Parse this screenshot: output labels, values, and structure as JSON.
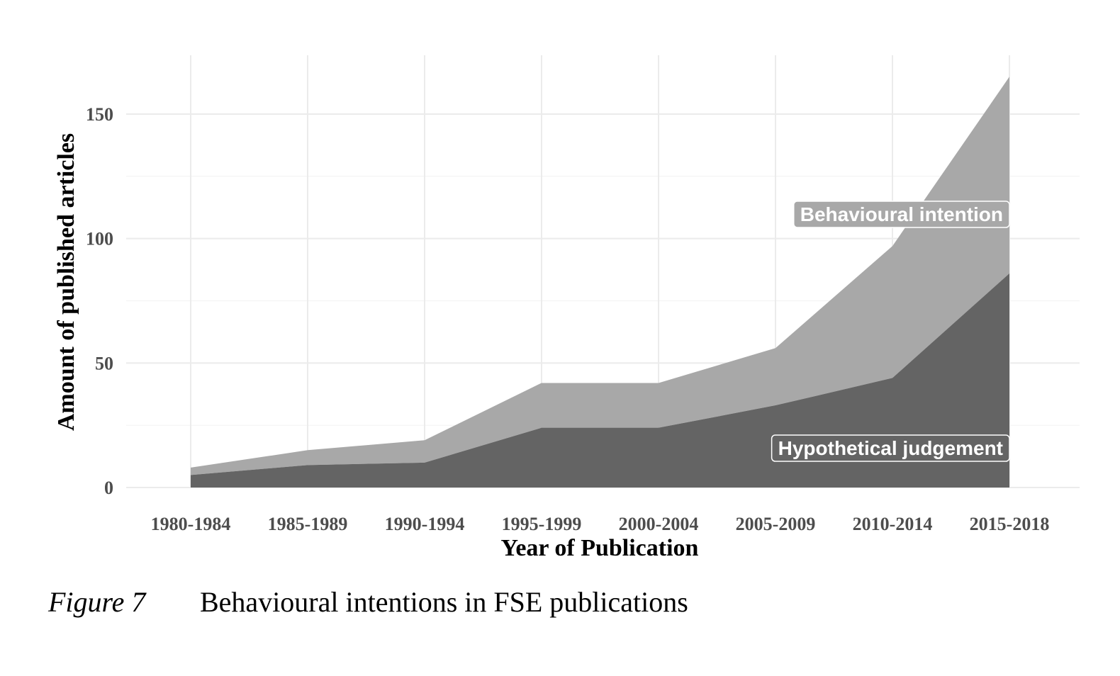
{
  "caption": {
    "figure_label": "Figure 7",
    "text": "Behavioural intentions in FSE publications"
  },
  "colors": {
    "hypothetical": "#646464",
    "behavioural": "#a8a8a8",
    "grid": "#ebebeb"
  },
  "chart_data": {
    "type": "area",
    "stacked": true,
    "xlabel": "Year of Publication",
    "ylabel": "Amount of published articles",
    "categories": [
      "1980-1984",
      "1985-1989",
      "1990-1994",
      "1995-1999",
      "2000-2004",
      "2005-2009",
      "2010-2014",
      "2015-2018"
    ],
    "ylim": [
      0,
      170
    ],
    "yticks": [
      0,
      50,
      100,
      150
    ],
    "grid": true,
    "series": [
      {
        "name": "Hypothetical judgement",
        "values": [
          5,
          9,
          10,
          24,
          24,
          33,
          44,
          86
        ]
      },
      {
        "name": "Behavioural intention",
        "values": [
          3,
          6,
          9,
          18,
          18,
          23,
          53,
          79
        ]
      }
    ]
  }
}
